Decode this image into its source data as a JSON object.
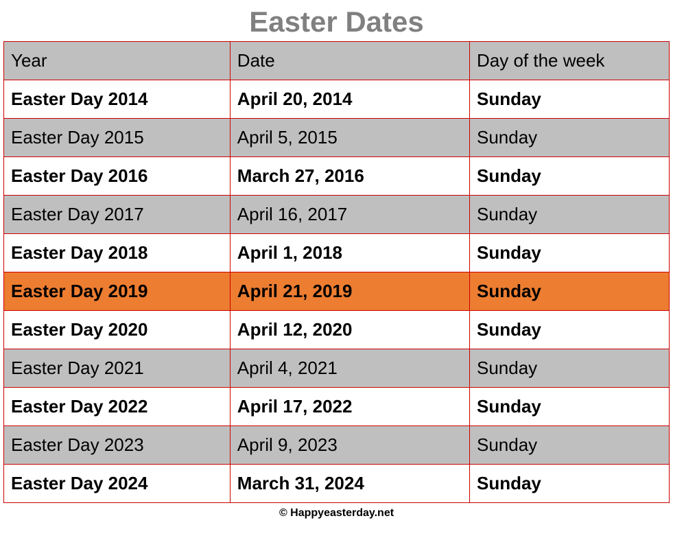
{
  "title": "Easter Dates",
  "table": {
    "type": "table",
    "columns": [
      "Year",
      "Date",
      "Day of the week"
    ],
    "column_widths": [
      "34%",
      "36%",
      "30%"
    ],
    "border_color": "#cc0000",
    "header_bg": "#bfbfbf",
    "row_white_bg": "#ffffff",
    "row_gray_bg": "#bfbfbf",
    "highlight_bg": "#ed7d31",
    "title_color": "#808080",
    "title_fontsize": 42,
    "cell_fontsize": 26,
    "rows": [
      {
        "year": "Easter Day 2014",
        "date": "April 20, 2014",
        "day": "Sunday",
        "style": "white"
      },
      {
        "year": "Easter Day 2015",
        "date": "April 5, 2015",
        "day": "Sunday",
        "style": "gray"
      },
      {
        "year": "Easter Day 2016",
        "date": "March 27, 2016",
        "day": "Sunday",
        "style": "white"
      },
      {
        "year": "Easter Day 2017",
        "date": "April 16, 2017",
        "day": "Sunday",
        "style": "gray"
      },
      {
        "year": "Easter Day 2018",
        "date": "April 1, 2018",
        "day": "Sunday",
        "style": "white"
      },
      {
        "year": "Easter Day 2019",
        "date": "April 21, 2019",
        "day": "Sunday",
        "style": "highlight"
      },
      {
        "year": "Easter Day 2020",
        "date": "April 12, 2020",
        "day": "Sunday",
        "style": "white"
      },
      {
        "year": "Easter Day 2021",
        "date": "April 4, 2021",
        "day": "Sunday",
        "style": "gray"
      },
      {
        "year": "Easter Day 2022",
        "date": "April 17, 2022",
        "day": "Sunday",
        "style": "white"
      },
      {
        "year": "Easter Day 2023",
        "date": "April 9, 2023",
        "day": "Sunday",
        "style": "gray"
      },
      {
        "year": "Easter Day 2024",
        "date": "March 31, 2024",
        "day": "Sunday",
        "style": "white"
      }
    ]
  },
  "footer": "© Happyeasterday.net"
}
